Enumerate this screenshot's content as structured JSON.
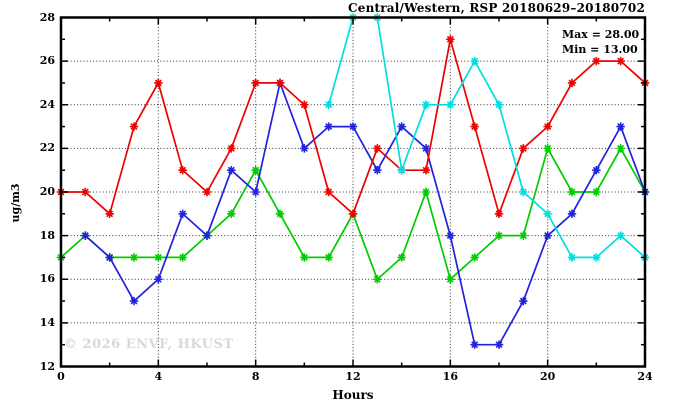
{
  "header": {
    "title": "Central/Western, RSP 20180629–20180702"
  },
  "annotation": {
    "max": "Max = 28.00",
    "min": "Min = 13.00"
  },
  "watermark": "© 2026 ENVF, HKUST",
  "chart_data": {
    "type": "line",
    "title": "Central/Western, RSP 20180629–20180702",
    "xlabel": "Hours",
    "ylabel": "ug/m3",
    "xlim": [
      0,
      24
    ],
    "ylim": [
      12,
      28
    ],
    "x_major_ticks": [
      0,
      4,
      8,
      12,
      16,
      20,
      24
    ],
    "x_minor_ticks": [
      2,
      6,
      10,
      14,
      18,
      22
    ],
    "y_major_ticks": [
      12,
      14,
      16,
      18,
      20,
      22,
      24,
      26,
      28
    ],
    "y_minor_ticks": [
      13,
      15,
      17,
      19,
      21,
      23,
      25,
      27
    ],
    "grid": "dotted at major ticks",
    "legend": "none",
    "marker": "asterisk",
    "max": 28.0,
    "min": 13.0,
    "x": [
      0,
      1,
      2,
      3,
      4,
      5,
      6,
      7,
      8,
      9,
      10,
      11,
      12,
      13,
      14,
      15,
      16,
      17,
      18,
      19,
      20,
      21,
      22,
      23,
      24
    ],
    "series": [
      {
        "name": "green",
        "color": "#00cc00",
        "values": [
          17,
          18,
          17,
          17,
          17,
          17,
          18,
          19,
          21,
          19,
          17,
          17,
          19,
          16,
          17,
          20,
          16,
          17,
          18,
          18,
          22,
          20,
          20,
          22,
          20
        ]
      },
      {
        "name": "blue",
        "color": "#2222dd",
        "values": [
          null,
          18,
          17,
          15,
          16,
          19,
          18,
          21,
          20,
          25,
          22,
          23,
          23,
          21,
          23,
          22,
          18,
          13,
          13,
          15,
          18,
          19,
          21,
          23,
          20
        ]
      },
      {
        "name": "red",
        "color": "#ee0000",
        "values": [
          20,
          20,
          19,
          23,
          25,
          21,
          20,
          22,
          25,
          25,
          24,
          20,
          19,
          22,
          21,
          21,
          27,
          23,
          19,
          22,
          23,
          25,
          26,
          26,
          25
        ]
      },
      {
        "name": "cyan",
        "color": "#00dede",
        "values": [
          null,
          null,
          null,
          null,
          null,
          null,
          null,
          null,
          null,
          null,
          null,
          24,
          28,
          28,
          21,
          24,
          24,
          26,
          24,
          20,
          19,
          17,
          17,
          18,
          17
        ]
      }
    ]
  },
  "colors": {
    "grid": "#333333",
    "frame": "#000000",
    "background": "#ffffff"
  }
}
